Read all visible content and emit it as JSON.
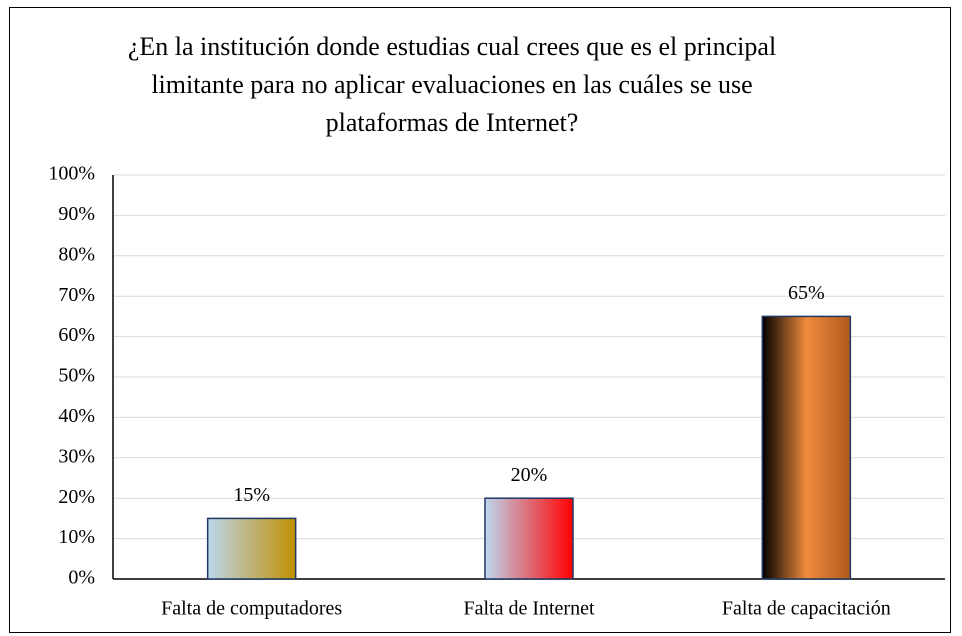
{
  "chart_data": {
    "type": "bar",
    "title": "¿En la institución donde estudias cual crees que es el principal limitante para no aplicar evaluaciones en las cuáles se use plataformas de Internet?",
    "categories": [
      "Falta de computadores",
      "Falta de Internet",
      "Falta de capacitación"
    ],
    "values": [
      15,
      20,
      65
    ],
    "value_labels": [
      "15%",
      "20%",
      "65%"
    ],
    "gradients": [
      [
        "#bdd7ee",
        "#bf9000"
      ],
      [
        "#bdd7ee",
        "#ff0000"
      ],
      [
        "#000000",
        "#f08a3c",
        "#b05a1e"
      ]
    ],
    "ylim": [
      0,
      100
    ],
    "yticks": [
      {
        "value": 0,
        "label": "0%"
      },
      {
        "value": 10,
        "label": "10%"
      },
      {
        "value": 20,
        "label": "20%"
      },
      {
        "value": 30,
        "label": "30%"
      },
      {
        "value": 40,
        "label": "40%"
      },
      {
        "value": 50,
        "label": "50%"
      },
      {
        "value": 60,
        "label": "60%"
      },
      {
        "value": 70,
        "label": "70%"
      },
      {
        "value": 80,
        "label": "80%"
      },
      {
        "value": 90,
        "label": "90%"
      },
      {
        "value": 100,
        "label": "100%"
      }
    ],
    "grid": true
  }
}
